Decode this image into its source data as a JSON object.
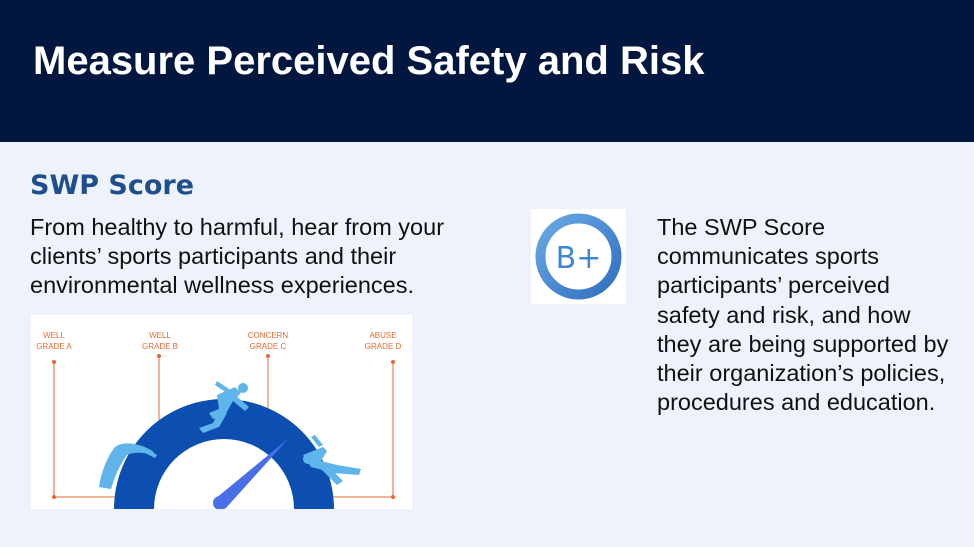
{
  "header": {
    "title": "Measure Perceived Safety and Risk"
  },
  "section": {
    "heading": "SWP Score",
    "intro": "From healthy to harmful, hear from your clients’ sports participants and their environmental wellness experiences.",
    "description": "The SWP Score communicates sports participants’ perceived safety and risk, and how they are being supported by their organization’s policies, procedures and education."
  },
  "badge": {
    "grade": "B+",
    "ring_color": "#4a90d9"
  },
  "gauge": {
    "labels": [
      {
        "line1": "WELL",
        "line2": "GRADE A"
      },
      {
        "line1": "WELL",
        "line2": "GRADE B"
      },
      {
        "line1": "CONCERN",
        "line2": "GRADE C"
      },
      {
        "line1": "ABUSE",
        "line2": "GRADE D"
      }
    ],
    "label_color": "#e36a2f",
    "arc_color": "#0d4fb0",
    "needle_color": "#4a6ee8",
    "figure_color": "#5fb4ea"
  },
  "colors": {
    "header_bg": "#02173f",
    "page_bg": "#eef3fb",
    "heading": "#1f4e8c"
  }
}
